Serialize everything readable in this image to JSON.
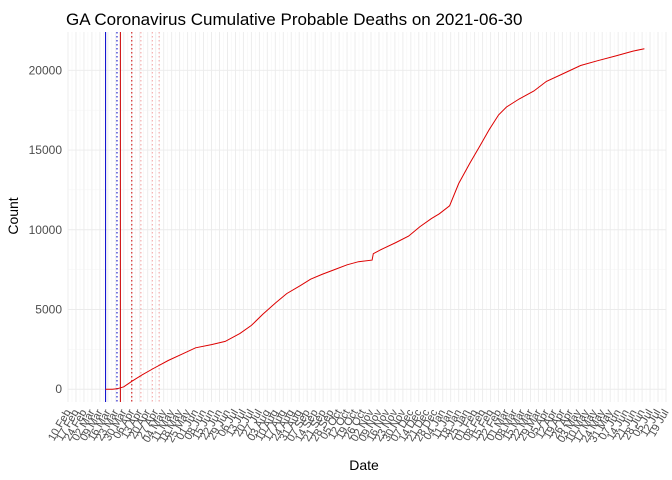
{
  "chart_data": {
    "type": "line",
    "title": "GA Coronavirus Cumulative Probable Deaths on 2021-06-30",
    "xlabel": "Date",
    "ylabel": "Count",
    "ylim": [
      -800,
      22400
    ],
    "yticks": [
      0,
      5000,
      10000,
      15000,
      20000
    ],
    "xlim": [
      "2020-02-10",
      "2021-07-19"
    ],
    "grid": true,
    "xtick_labels": [
      "10 Feb",
      "17 Feb",
      "24 Feb",
      "02 Mar",
      "09 Mar",
      "16 Mar",
      "23 Mar",
      "30 Mar",
      "06 Apr",
      "13 Apr",
      "20 Apr",
      "27 Apr",
      "04 May",
      "11 May",
      "18 May",
      "25 May",
      "01 Jun",
      "08 Jun",
      "15 Jun",
      "22 Jun",
      "29 Jun",
      "06 Jul",
      "13 Jul",
      "20 Jul",
      "27 Jul",
      "03 Aug",
      "10 Aug",
      "17 Aug",
      "24 Aug",
      "31 Aug",
      "07 Sep",
      "14 Sep",
      "21 Sep",
      "28 Sep",
      "05 Oct",
      "12 Oct",
      "19 Oct",
      "26 Oct",
      "02 Nov",
      "09 Nov",
      "16 Nov",
      "23 Nov",
      "30 Nov",
      "07 Dec",
      "14 Dec",
      "21 Dec",
      "28 Dec",
      "04 Jan",
      "11 Jan",
      "18 Jan",
      "25 Jan",
      "01 Feb",
      "08 Feb",
      "15 Feb",
      "22 Feb",
      "01 Mar",
      "08 Mar",
      "15 Mar",
      "22 Mar",
      "29 Mar",
      "05 Apr",
      "12 Apr",
      "19 Apr",
      "26 Apr",
      "03 May",
      "10 May",
      "17 May",
      "24 May",
      "31 May",
      "07 Jun",
      "14 Jun",
      "21 Jun",
      "28 Jun",
      "05 Jul",
      "12 Jul",
      "19 Jul"
    ],
    "vertical_lines": [
      {
        "date": "2020-03-14",
        "color": "#0000cc",
        "style": "solid"
      },
      {
        "date": "2020-03-24",
        "color": "#0000cc",
        "style": "dotted"
      },
      {
        "date": "2020-03-27",
        "color": "#cc0000",
        "style": "solid"
      },
      {
        "date": "2020-04-06",
        "color": "#cc0000",
        "style": "dotted"
      },
      {
        "date": "2020-04-14",
        "color": "#f4a0a0",
        "style": "dotted"
      },
      {
        "date": "2020-04-24",
        "color": "#f4a0a0",
        "style": "dotted"
      },
      {
        "date": "2020-04-30",
        "color": "#f4a0a0",
        "style": "dotted"
      }
    ],
    "series": [
      {
        "color": "#dd0000",
        "x": [
          "2020-03-14",
          "2020-03-20",
          "2020-03-24",
          "2020-03-30",
          "2020-04-06",
          "2020-04-15",
          "2020-04-25",
          "2020-05-08",
          "2020-05-20",
          "2020-06-01",
          "2020-06-15",
          "2020-06-27",
          "2020-07-10",
          "2020-07-20",
          "2020-07-30",
          "2020-08-10",
          "2020-08-20",
          "2020-09-01",
          "2020-09-10",
          "2020-09-20",
          "2020-10-01",
          "2020-10-12",
          "2020-10-22",
          "2020-11-03",
          "2020-11-04",
          "2020-11-12",
          "2020-11-24",
          "2020-12-05",
          "2020-12-15",
          "2020-12-25",
          "2021-01-01",
          "2021-01-10",
          "2021-01-18",
          "2021-01-28",
          "2021-02-06",
          "2021-02-14",
          "2021-02-22",
          "2021-03-01",
          "2021-03-12",
          "2021-03-25",
          "2021-04-05",
          "2021-04-20",
          "2021-05-05",
          "2021-05-20",
          "2021-06-05",
          "2021-06-20",
          "2021-06-30"
        ],
        "y": [
          0,
          0,
          30,
          150,
          500,
          900,
          1300,
          1800,
          2200,
          2600,
          2800,
          3000,
          3500,
          4000,
          4700,
          5400,
          6000,
          6500,
          6900,
          7200,
          7500,
          7800,
          8000,
          8100,
          8500,
          8800,
          9200,
          9600,
          10200,
          10700,
          11000,
          11500,
          12900,
          14200,
          15300,
          16300,
          17200,
          17700,
          18200,
          18700,
          19300,
          19800,
          20300,
          20600,
          20900,
          21200,
          21350
        ]
      }
    ]
  }
}
